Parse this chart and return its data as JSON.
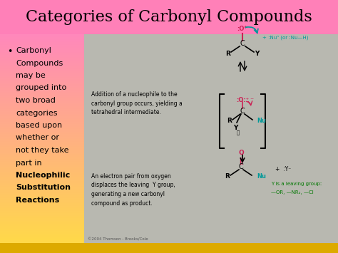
{
  "title": "Categories of Carbonyl Compounds",
  "title_fontsize": 16,
  "title_color": "#000000",
  "title_bg": "#ff80b8",
  "left_bg_top": "#ff88bb",
  "left_bg_bottom": "#ffdd44",
  "right_bg": "#b8b8b0",
  "bottom_bg": "#ddaa00",
  "bullet_text_lines": [
    "Carbonyl",
    "Compounds",
    "may be",
    "grouped into",
    "two broad",
    "categories",
    "based upon",
    "whether or",
    "not they take",
    "part in"
  ],
  "bold_text_lines": [
    "Nucleophilic",
    "Substitution",
    "Reactions"
  ],
  "desc1": "Addition of a nucleophile to the\ncarbonyl group occurs, yielding a\ntetrahedral intermediate.",
  "desc2": "An electron pair from oxygen\ndisplaces the leaving  Y group,\ngenerating a new carbonyl\ncompound as product.",
  "copyright": "©2004 Thomson - Brooks/Cole",
  "nu_color": "#009999",
  "red_color": "#cc2255",
  "green_color": "#007700",
  "black": "#000000",
  "fig_w": 4.74,
  "fig_h": 3.55,
  "dpi": 100
}
